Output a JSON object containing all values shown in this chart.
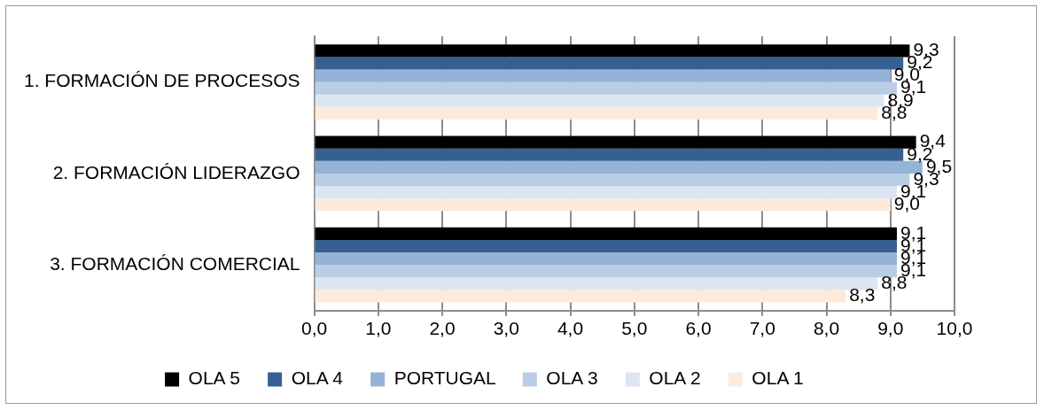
{
  "chart_data": {
    "type": "bar",
    "orientation": "horizontal",
    "categories": [
      "1. FORMACIÓN DE PROCESOS",
      "2. FORMACIÓN LIDERAZGO",
      "3. FORMACIÓN COMERCIAL"
    ],
    "series": [
      {
        "name": "OLA 5",
        "color": "#000000",
        "values": [
          9.3,
          9.4,
          9.1
        ],
        "value_labels": [
          "9,3",
          "9,4",
          "9,1"
        ]
      },
      {
        "name": "OLA 4",
        "color": "#376092",
        "values": [
          9.2,
          9.2,
          9.1
        ],
        "value_labels": [
          "9,2",
          "9,2",
          "9,1"
        ]
      },
      {
        "name": "PORTUGAL",
        "color": "#95b3d7",
        "values": [
          9.0,
          9.5,
          9.1
        ],
        "value_labels": [
          "9,0",
          "9,5",
          "9,1"
        ]
      },
      {
        "name": "OLA 3",
        "color": "#b9cde5",
        "values": [
          9.1,
          9.3,
          9.1
        ],
        "value_labels": [
          "9,1",
          "9,3",
          "9,1"
        ]
      },
      {
        "name": "OLA 2",
        "color": "#dce6f2",
        "values": [
          8.9,
          9.1,
          8.8
        ],
        "value_labels": [
          "8,9",
          "9,1",
          "8,8"
        ]
      },
      {
        "name": "OLA 1",
        "color": "#fdeada",
        "values": [
          8.8,
          9.0,
          8.3
        ],
        "value_labels": [
          "8,8",
          "9,0",
          "8,3"
        ]
      }
    ],
    "xlim": [
      0,
      10
    ],
    "xticks": [
      {
        "value": 0,
        "label": "0,0"
      },
      {
        "value": 1,
        "label": "1,0"
      },
      {
        "value": 2,
        "label": "2,0"
      },
      {
        "value": 3,
        "label": "3,0"
      },
      {
        "value": 4,
        "label": "4,0"
      },
      {
        "value": 5,
        "label": "5,0"
      },
      {
        "value": 6,
        "label": "6,0"
      },
      {
        "value": 7,
        "label": "7,0"
      },
      {
        "value": 8,
        "label": "8,0"
      },
      {
        "value": 9,
        "label": "9,0"
      },
      {
        "value": 10,
        "label": "10,0"
      }
    ],
    "grid": "x",
    "legend": "bottom"
  }
}
